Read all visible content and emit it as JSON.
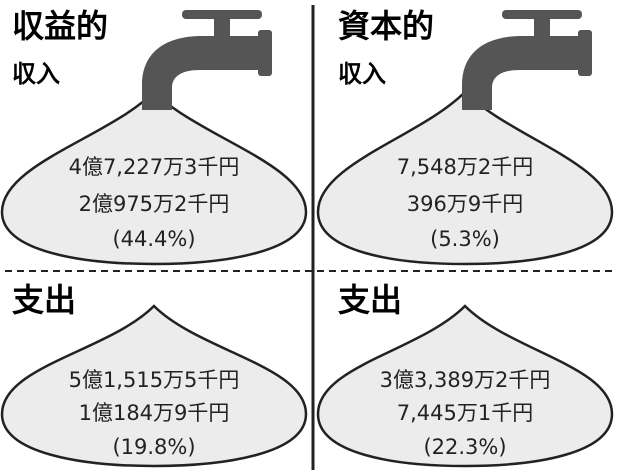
{
  "panels": [
    {
      "title": "収益的",
      "subtitle": "収入",
      "lines": [
        "4億7,227万3千円",
        "2億975万2千円",
        "(44.4%)"
      ]
    },
    {
      "title": "資本的",
      "subtitle": "収入",
      "lines": [
        "7,548万2千円",
        "396万9千円",
        "(5.3%)"
      ]
    },
    {
      "title": "支出",
      "lines": [
        "5億1,515万5千円",
        "1億184万9千円",
        "(19.8%)"
      ]
    },
    {
      "title": "支出",
      "lines": [
        "3億3,389万2千円",
        "7,445万1千円",
        "(22.3%)"
      ]
    }
  ]
}
